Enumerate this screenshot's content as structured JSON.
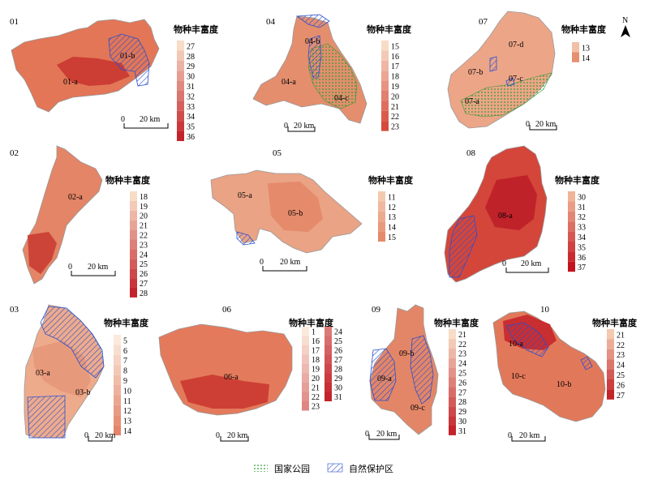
{
  "legend_title": "物种丰富度",
  "unit": "km",
  "north": "N",
  "bottom_legend": {
    "national_park": "国家公园",
    "nature_reserve": "自然保护区"
  },
  "colors": {
    "low": "#f7dcc6",
    "high": "#c3232a",
    "outline": "#9a9a9a",
    "reserve": "#2a4ecf",
    "park": "#2e9a2e"
  },
  "panels": [
    {
      "id": "01",
      "regions": [
        "01-a",
        "01-b"
      ],
      "legend": [
        "27",
        "28",
        "29",
        "30",
        "31",
        "32",
        "33",
        "34",
        "35",
        "36"
      ],
      "scale": [
        "0",
        "20 km"
      ]
    },
    {
      "id": "04",
      "regions": [
        "04-a",
        "04-b",
        "04-c"
      ],
      "legend": [
        "15",
        "16",
        "17",
        "18",
        "19",
        "20",
        "21",
        "22",
        "23"
      ],
      "scale": [
        "0",
        "20 km"
      ]
    },
    {
      "id": "07",
      "regions": [
        "07-a",
        "07-b",
        "07-c",
        "07-d"
      ],
      "legend": [
        "13",
        "14"
      ],
      "scale": [
        "0",
        "20 km"
      ]
    },
    {
      "id": "02",
      "regions": [
        "02-a"
      ],
      "legend": [
        "18",
        "19",
        "20",
        "21",
        "22",
        "23",
        "24",
        "25",
        "26",
        "27",
        "28"
      ],
      "scale": [
        "0",
        "20 km"
      ]
    },
    {
      "id": "05",
      "regions": [
        "05-a",
        "05-b"
      ],
      "legend": [
        "11",
        "12",
        "13",
        "14",
        "15"
      ],
      "scale": [
        "0",
        "20 km"
      ]
    },
    {
      "id": "08",
      "regions": [
        "08-a"
      ],
      "legend": [
        "30",
        "31",
        "32",
        "33",
        "34",
        "35",
        "36",
        "37"
      ],
      "scale": [
        "0",
        "20 km"
      ]
    },
    {
      "id": "03",
      "regions": [
        "03-a",
        "03-b"
      ],
      "legend": [
        "5",
        "6",
        "7",
        "8",
        "9",
        "10",
        "11",
        "12",
        "13",
        "14"
      ],
      "scale": [
        "0",
        "20 km"
      ]
    },
    {
      "id": "06",
      "regions": [
        "06-a"
      ],
      "legend": [
        "1",
        "16",
        "17",
        "18",
        "19",
        "20",
        "21",
        "22",
        "23",
        "24",
        "25",
        "26",
        "27",
        "28",
        "29",
        "30",
        "31"
      ],
      "scale": [
        "0",
        "20 km"
      ]
    },
    {
      "id": "09",
      "regions": [
        "09-a",
        "09-b",
        "09-c"
      ],
      "legend": [
        "21",
        "22",
        "23",
        "24",
        "25",
        "26",
        "27",
        "28",
        "29",
        "30",
        "31"
      ],
      "scale": [
        "0",
        "20 km"
      ]
    },
    {
      "id": "10",
      "regions": [
        "10-a",
        "10-b",
        "10-c"
      ],
      "legend": [
        "21",
        "22",
        "23",
        "24",
        "25",
        "26",
        "27"
      ],
      "scale": [
        "0",
        "20 km"
      ]
    }
  ]
}
